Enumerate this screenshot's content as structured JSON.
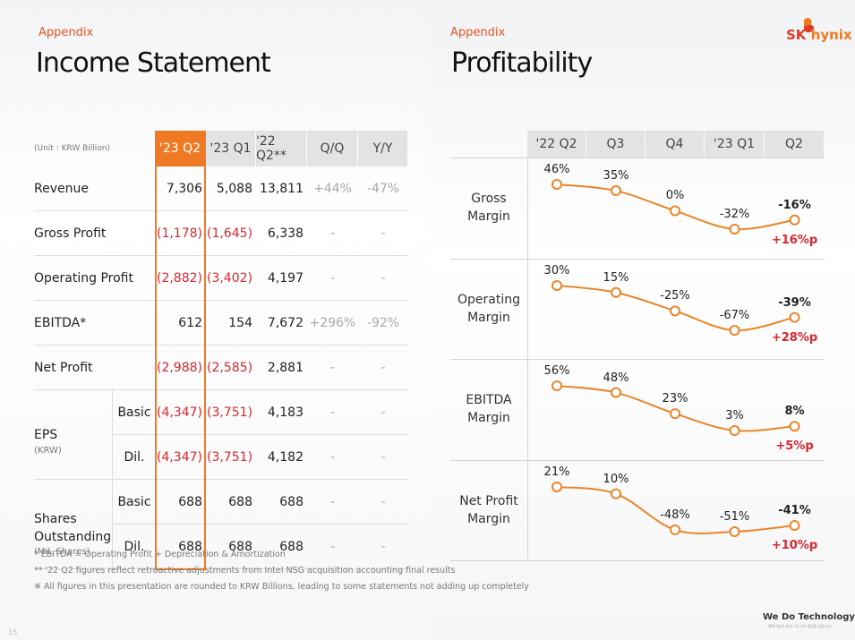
{
  "left": {
    "label": "Appendix",
    "title": "Income Statement",
    "unit": "(Unit : KRW Billion)",
    "columns": [
      "'23 Q2",
      "'23 Q1",
      "'22 Q2**",
      "Q/Q",
      "Y/Y"
    ],
    "rows": [
      {
        "label": "Revenue",
        "values": [
          "7,306",
          "5,088",
          "13,811",
          "+44%",
          "-47%"
        ],
        "neg": [
          false,
          false,
          false
        ]
      },
      {
        "label": "Gross Profit",
        "values": [
          "(1,178)",
          "(1,645)",
          "6,338",
          "-",
          "-"
        ],
        "neg": [
          true,
          true,
          false
        ]
      },
      {
        "label": "Operating Profit",
        "values": [
          "(2,882)",
          "(3,402)",
          "4,197",
          "-",
          "-"
        ],
        "neg": [
          true,
          true,
          false
        ]
      },
      {
        "label": "EBITDA*",
        "values": [
          "612",
          "154",
          "7,672",
          "+296%",
          "-92%"
        ],
        "neg": [
          false,
          false,
          false
        ]
      },
      {
        "label": "Net Profit",
        "values": [
          "(2,988)",
          "(2,585)",
          "2,881",
          "-",
          "-"
        ],
        "neg": [
          true,
          true,
          false
        ]
      }
    ],
    "eps": {
      "label": "EPS",
      "sub": "(KRW)",
      "rows": [
        {
          "label": "Basic",
          "values": [
            "(4,347)",
            "(3,751)",
            "4,183",
            "-",
            "-"
          ],
          "neg": [
            true,
            true,
            false
          ]
        },
        {
          "label": "Dil.",
          "values": [
            "(4,347)",
            "(3,751)",
            "4,182",
            "-",
            "-"
          ],
          "neg": [
            true,
            true,
            false
          ]
        }
      ]
    },
    "shares": {
      "label1": "Shares",
      "label2": "Outstanding",
      "sub": "(Mil. Shares)",
      "rows": [
        {
          "label": "Basic",
          "values": [
            "688",
            "688",
            "688",
            "-",
            "-"
          ],
          "neg": [
            false,
            false,
            false
          ]
        },
        {
          "label": "Dil.",
          "values": [
            "688",
            "688",
            "688",
            "-",
            "-"
          ],
          "neg": [
            false,
            false,
            false
          ]
        }
      ]
    },
    "footnotes": [
      "* EBITDA = Operating Profit + Depreciation & Amortization",
      "** '22 Q2 figures reflect retroactive adjustments from Intel NSG acquisition accounting final results",
      "※ All figures in this presentation are rounded to KRW Billions, leading to some statements not adding up completely"
    ],
    "page_number": "15"
  },
  "right": {
    "label": "Appendix",
    "title": "Profitability",
    "logo_text_sk": "SK",
    "logo_text_hynix": "hynix",
    "footer_brand": "We Do Technology",
    "footer_sub": "행복기술이 완성, 더 나은 세상을 만듭니다",
    "accent_color": "#e8862a",
    "positive_delta_color": "#d8262f"
  },
  "chart_data": {
    "type": "line",
    "categories": [
      "'22 Q2",
      "Q3",
      "Q4",
      "'23 Q1",
      "Q2"
    ],
    "series": [
      {
        "name": "Gross Margin",
        "name_lines": [
          "Gross",
          "Margin"
        ],
        "values": [
          46,
          35,
          0,
          -32,
          -16
        ],
        "labels": [
          "46%",
          "35%",
          "0%",
          "-32%",
          "-16%"
        ],
        "delta": "+16%p"
      },
      {
        "name": "Operating Margin",
        "name_lines": [
          "Operating",
          "Margin"
        ],
        "values": [
          30,
          15,
          -25,
          -67,
          -39
        ],
        "labels": [
          "30%",
          "15%",
          "-25%",
          "-67%",
          "-39%"
        ],
        "delta": "+28%p"
      },
      {
        "name": "EBITDA Margin",
        "name_lines": [
          "EBITDA",
          "Margin"
        ],
        "values": [
          56,
          48,
          23,
          3,
          8
        ],
        "labels": [
          "56%",
          "48%",
          "23%",
          "3%",
          "8%"
        ],
        "delta": "+5%p"
      },
      {
        "name": "Net Profit Margin",
        "name_lines": [
          "Net Profit",
          "Margin"
        ],
        "values": [
          21,
          10,
          -48,
          -51,
          -41
        ],
        "labels": [
          "21%",
          "10%",
          "-48%",
          "-51%",
          "-41%"
        ],
        "delta": "+10%p"
      }
    ]
  }
}
